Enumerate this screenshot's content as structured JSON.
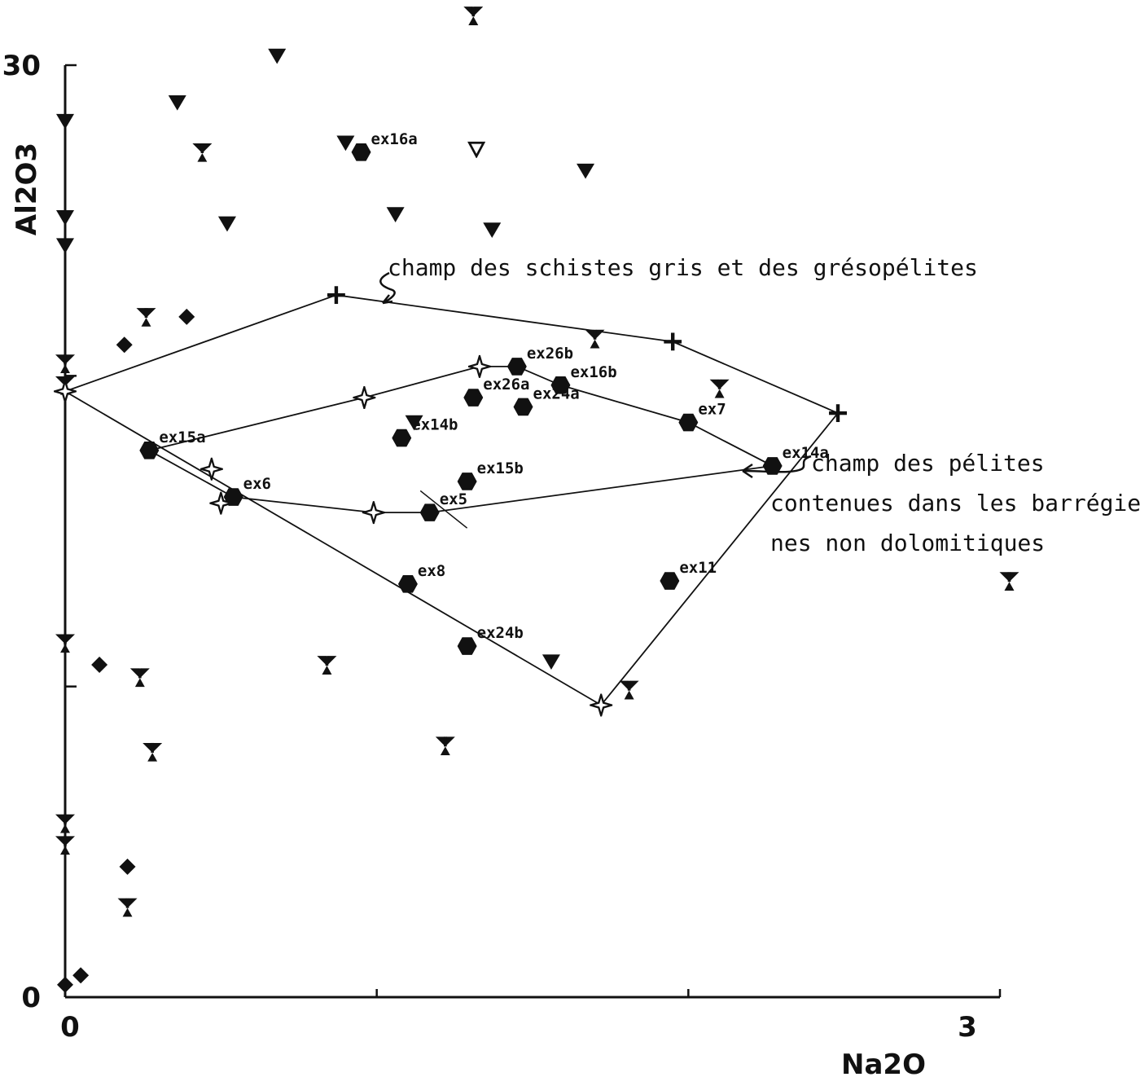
{
  "chart_data": {
    "type": "scatter",
    "xlabel": "Na2O",
    "ylabel": "Al2O3",
    "xlim": [
      0,
      3
    ],
    "ylim": [
      0,
      30
    ],
    "x_ticks": [
      0,
      1,
      2,
      3
    ],
    "y_ticks": [
      0,
      10,
      20,
      30
    ],
    "x_tick_labels": [
      "0",
      "3"
    ],
    "y_tick_labels": [
      "0",
      "30"
    ],
    "grid": false,
    "legend": "none",
    "series": [
      {
        "marker": "hexagon",
        "points": [
          {
            "x": 0.27,
            "y": 17.6,
            "label": "ex15a"
          },
          {
            "x": 0.54,
            "y": 16.1,
            "label": "ex6"
          },
          {
            "x": 1.17,
            "y": 15.6,
            "label": "ex5"
          },
          {
            "x": 1.29,
            "y": 16.6,
            "label": "ex15b"
          },
          {
            "x": 1.08,
            "y": 18.0,
            "label": "ex14b"
          },
          {
            "x": 1.31,
            "y": 19.3,
            "label": "ex26a"
          },
          {
            "x": 1.47,
            "y": 19.0,
            "label": "ex24a"
          },
          {
            "x": 1.45,
            "y": 20.3,
            "label": "ex26b"
          },
          {
            "x": 1.59,
            "y": 19.7,
            "label": "ex16b"
          },
          {
            "x": 2.0,
            "y": 18.5,
            "label": "ex7"
          },
          {
            "x": 2.27,
            "y": 17.1,
            "label": "ex14a"
          },
          {
            "x": 1.94,
            "y": 13.4,
            "label": "ex11"
          },
          {
            "x": 1.1,
            "y": 13.3,
            "label": "ex8"
          },
          {
            "x": 1.29,
            "y": 11.3,
            "label": "ex24b"
          },
          {
            "x": 0.95,
            "y": 27.2,
            "label": "ex16a"
          }
        ]
      },
      {
        "marker": "triangle-down",
        "points": [
          {
            "x": 0.0,
            "y": 28.2
          },
          {
            "x": 0.0,
            "y": 25.1
          },
          {
            "x": 0.0,
            "y": 24.2
          },
          {
            "x": 0.36,
            "y": 28.8
          },
          {
            "x": 0.52,
            "y": 24.9
          },
          {
            "x": 0.68,
            "y": 30.3
          },
          {
            "x": 0.9,
            "y": 27.5
          },
          {
            "x": 1.06,
            "y": 25.2
          },
          {
            "x": 1.37,
            "y": 24.7
          },
          {
            "x": 1.67,
            "y": 26.6
          },
          {
            "x": 1.12,
            "y": 18.5
          },
          {
            "x": 1.56,
            "y": 10.8
          }
        ]
      },
      {
        "marker": "triangle-down-open",
        "points": [
          {
            "x": 1.32,
            "y": 27.3
          }
        ]
      },
      {
        "marker": "trefoil",
        "points": [
          {
            "x": 1.31,
            "y": 31.6
          },
          {
            "x": 0.44,
            "y": 27.2
          },
          {
            "x": 0.26,
            "y": 21.9
          },
          {
            "x": 0.0,
            "y": 20.4
          },
          {
            "x": 0.0,
            "y": 19.7
          },
          {
            "x": 1.7,
            "y": 21.2
          },
          {
            "x": 2.1,
            "y": 19.6
          },
          {
            "x": 3.03,
            "y": 13.4
          },
          {
            "x": 0.0,
            "y": 11.4
          },
          {
            "x": 0.24,
            "y": 10.3
          },
          {
            "x": 0.84,
            "y": 10.7
          },
          {
            "x": 1.81,
            "y": 9.9
          },
          {
            "x": 0.28,
            "y": 7.9
          },
          {
            "x": 1.22,
            "y": 8.1
          },
          {
            "x": 0.0,
            "y": 5.6
          },
          {
            "x": 0.0,
            "y": 4.9
          },
          {
            "x": 0.2,
            "y": 2.9
          }
        ]
      },
      {
        "marker": "diamond",
        "points": [
          {
            "x": 0.39,
            "y": 21.9
          },
          {
            "x": 0.19,
            "y": 21.0
          },
          {
            "x": 0.11,
            "y": 10.7
          },
          {
            "x": 0.2,
            "y": 4.2
          },
          {
            "x": 0.0,
            "y": 0.4
          },
          {
            "x": 0.05,
            "y": 0.7
          }
        ]
      },
      {
        "marker": "star-open",
        "points": [
          {
            "x": 0.0,
            "y": 19.5
          },
          {
            "x": 0.47,
            "y": 17.0
          },
          {
            "x": 0.5,
            "y": 15.9
          },
          {
            "x": 0.96,
            "y": 19.3
          },
          {
            "x": 1.33,
            "y": 20.3
          },
          {
            "x": 0.99,
            "y": 15.6
          },
          {
            "x": 1.72,
            "y": 9.4
          }
        ]
      },
      {
        "marker": "plus",
        "points": [
          {
            "x": 0.87,
            "y": 22.6
          },
          {
            "x": 1.95,
            "y": 21.1
          },
          {
            "x": 2.48,
            "y": 18.8
          }
        ]
      }
    ],
    "fields": [
      {
        "name": "champ des schistes gris et des grésopélites",
        "polygon": [
          [
            0.0,
            19.5
          ],
          [
            0.87,
            22.6
          ],
          [
            1.95,
            21.1
          ],
          [
            2.48,
            18.8
          ],
          [
            1.72,
            9.4
          ]
        ]
      },
      {
        "name": "champ des pélites contenues dans les barrégiennes non dolomitiques",
        "polygon": [
          [
            0.27,
            17.6
          ],
          [
            0.96,
            19.3
          ],
          [
            1.33,
            20.3
          ],
          [
            1.45,
            20.3
          ],
          [
            1.59,
            19.7
          ],
          [
            2.0,
            18.5
          ],
          [
            2.27,
            17.1
          ],
          [
            1.17,
            15.6
          ],
          [
            0.99,
            15.6
          ],
          [
            0.54,
            16.1
          ]
        ]
      }
    ],
    "annotations": [
      "champ des schistes gris et des grésopélites",
      "champ des pélites",
      "contenues dans les barrégien",
      "nes non dolomitiques"
    ]
  }
}
